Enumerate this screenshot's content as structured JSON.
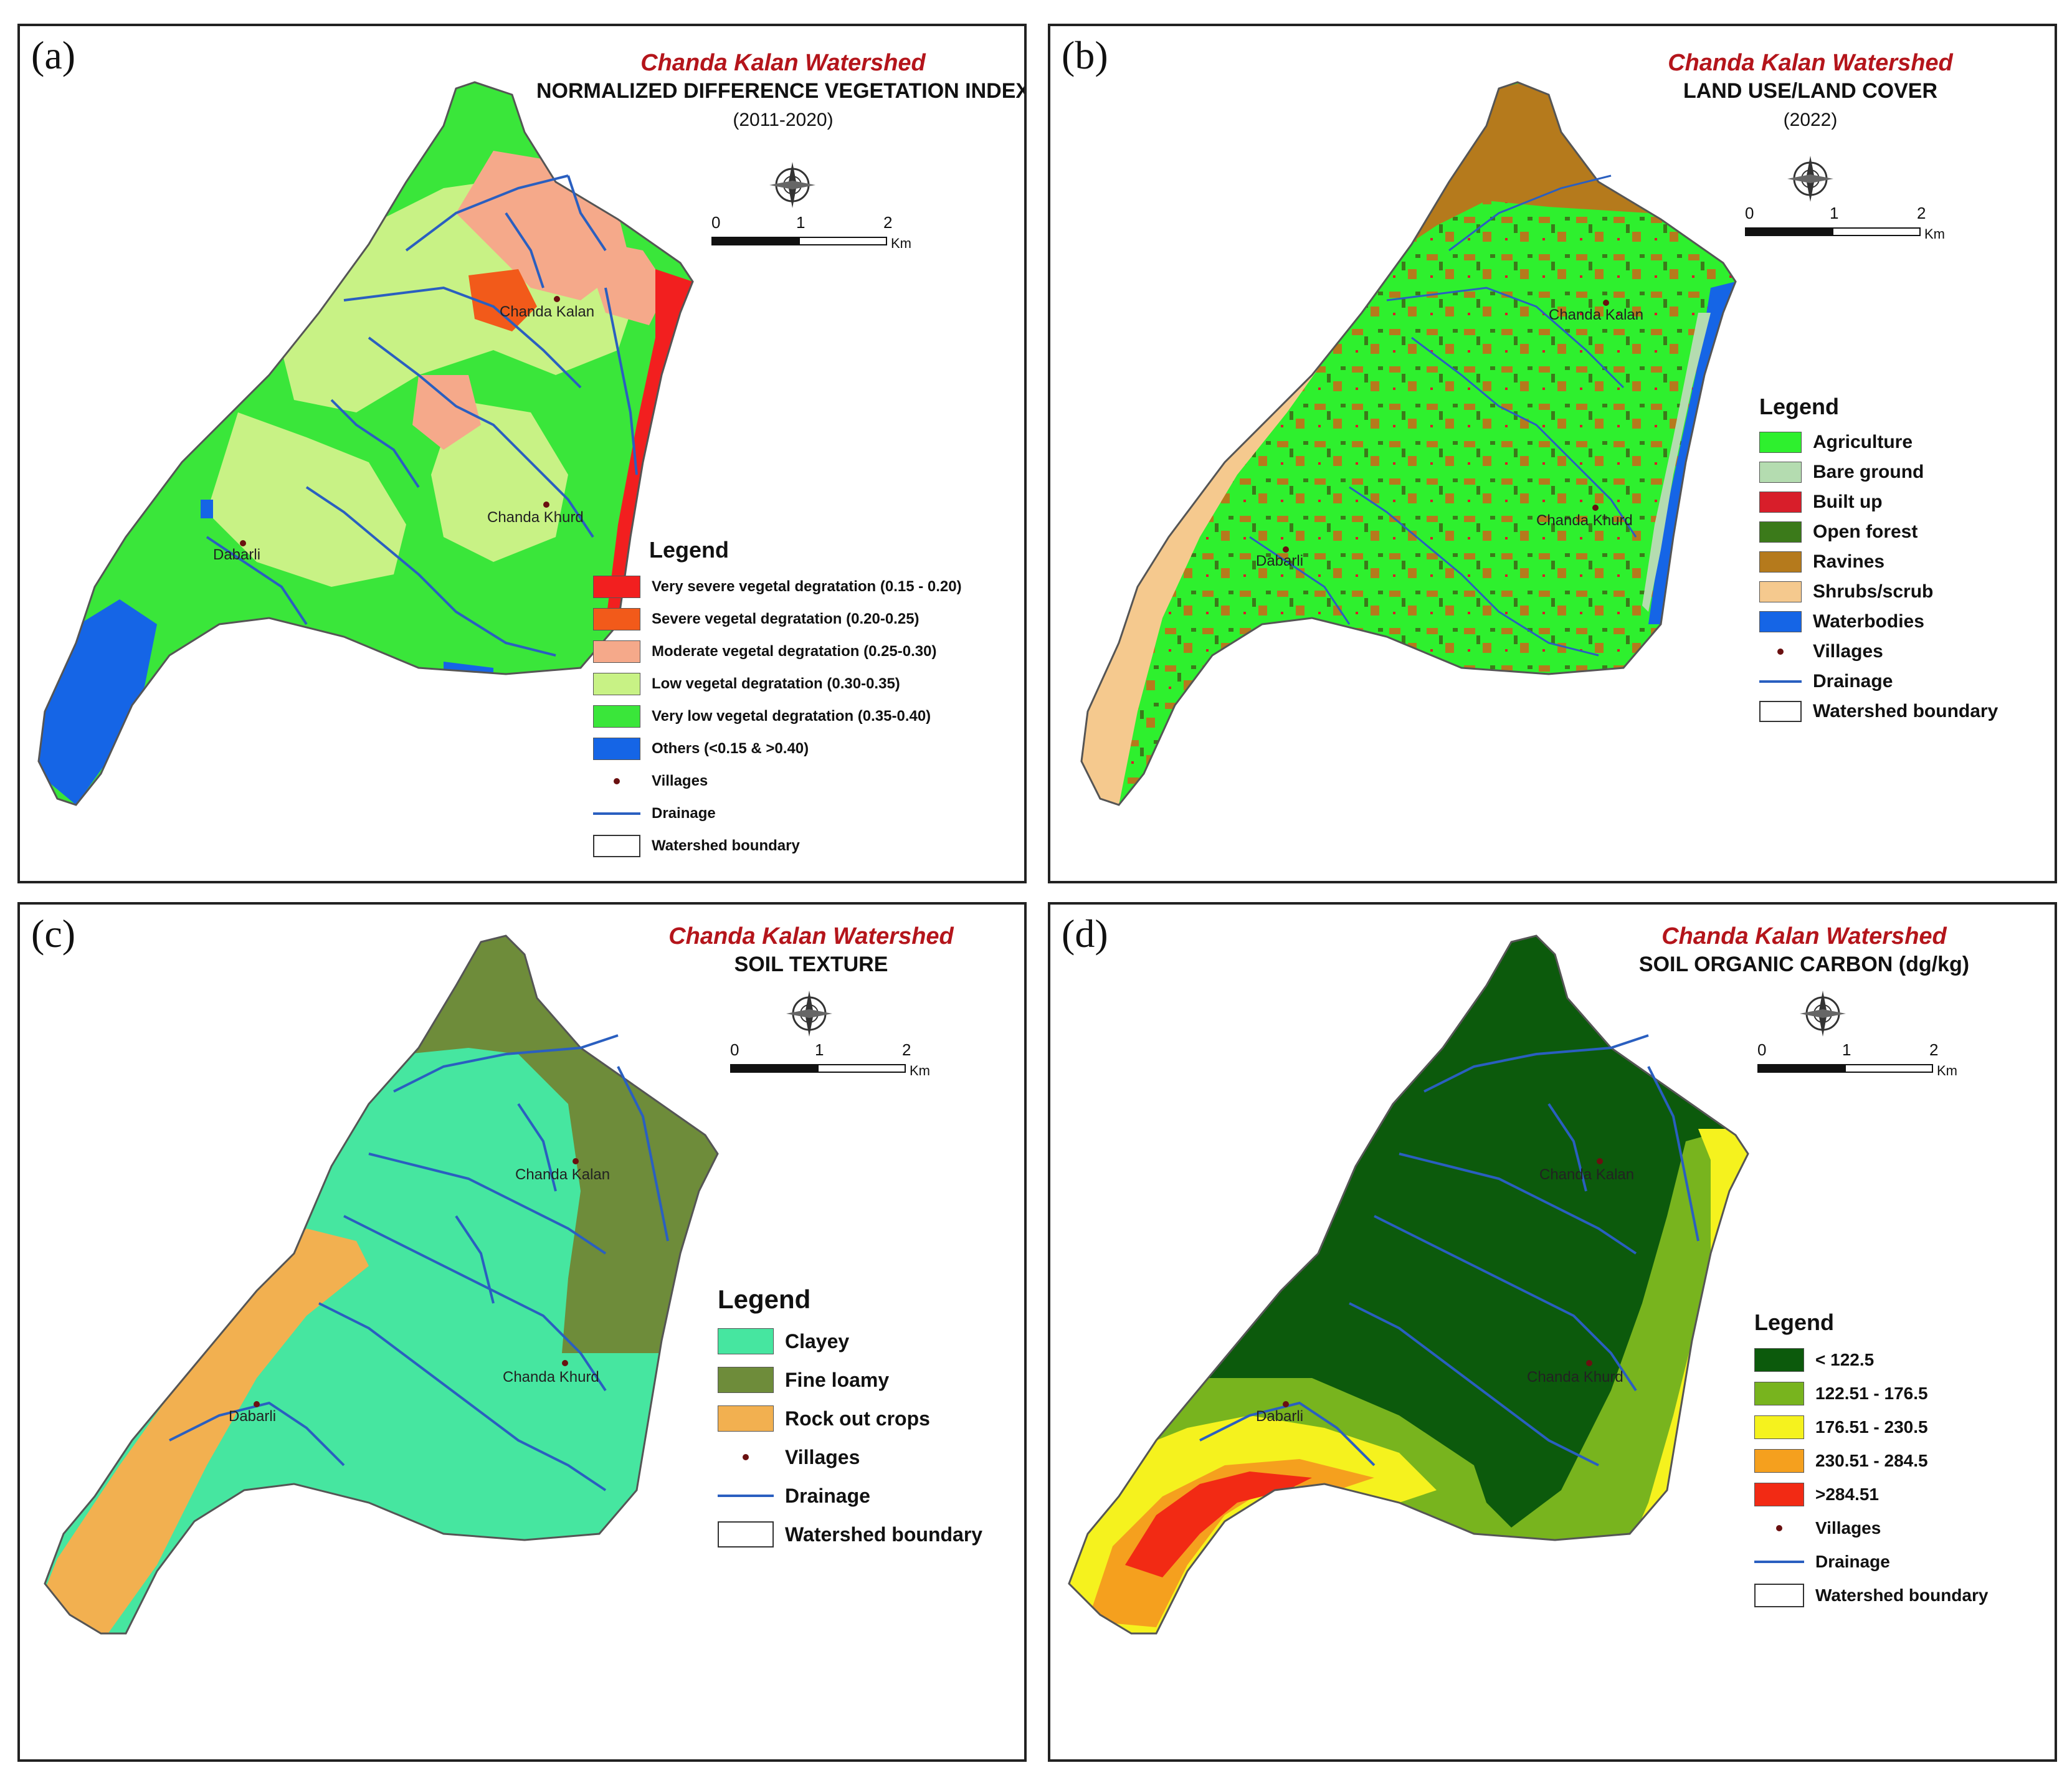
{
  "panels": {
    "a": {
      "label": "(a)",
      "watershed": "Chanda Kalan Watershed",
      "title": "NORMALIZED DIFFERENCE VEGETATION INDEX",
      "subtitle": "(2011-2020)",
      "legend_title": "Legend",
      "legend": [
        {
          "label": "Very severe vegetal degratation (0.15 - 0.20)",
          "color": "#f21f1f"
        },
        {
          "label": "Severe vegetal degratation (0.20-0.25)",
          "color": "#f25a1a"
        },
        {
          "label": "Moderate vegetal degratation (0.25-0.30)",
          "color": "#f5a98a"
        },
        {
          "label": "Low vegetal degratation (0.30-0.35)",
          "color": "#c8f285"
        },
        {
          "label": "Very low vegetal degratation (0.35-0.40)",
          "color": "#3ae63a"
        },
        {
          "label": "Others (<0.15 & >0.40)",
          "color": "#1565e6"
        }
      ],
      "symbols": {
        "villages": "Villages",
        "drainage": "Drainage",
        "boundary": "Watershed boundary"
      },
      "villages": [
        "Chanda Kalan",
        "Chanda Khurd",
        "Dabarli"
      ]
    },
    "b": {
      "label": "(b)",
      "watershed": "Chanda Kalan Watershed",
      "title": "LAND USE/LAND COVER",
      "subtitle": "(2022)",
      "legend_title": "Legend",
      "legend": [
        {
          "label": "Agriculture",
          "color": "#2ef02e"
        },
        {
          "label": "Bare ground",
          "color": "#b4dcb0"
        },
        {
          "label": "Built up",
          "color": "#d81e2a"
        },
        {
          "label": "Open forest",
          "color": "#3b7a1a"
        },
        {
          "label": "Ravines",
          "color": "#b57a1c"
        },
        {
          "label": "Shrubs/scrub",
          "color": "#f5c98e"
        },
        {
          "label": "Waterbodies",
          "color": "#1565e6"
        }
      ],
      "symbols": {
        "villages": "Villages",
        "drainage": "Drainage",
        "boundary": "Watershed boundary"
      },
      "villages": [
        "Chanda Kalan",
        "Chanda Khurd",
        "Dabarli"
      ]
    },
    "c": {
      "label": "(c)",
      "watershed": "Chanda Kalan Watershed",
      "title": "SOIL TEXTURE",
      "legend_title": "Legend",
      "legend": [
        {
          "label": "Clayey",
          "color": "#46e6a0"
        },
        {
          "label": "Fine loamy",
          "color": "#6e8c3a"
        },
        {
          "label": "Rock out crops",
          "color": "#f2b050"
        }
      ],
      "symbols": {
        "villages": "Villages",
        "drainage": "Drainage",
        "boundary": "Watershed boundary"
      },
      "villages": [
        "Chanda Kalan",
        "Chanda Khurd",
        "Dabarli"
      ]
    },
    "d": {
      "label": "(d)",
      "watershed": "Chanda Kalan Watershed",
      "title": "SOIL ORGANIC CARBON (dg/kg)",
      "legend_title": "Legend",
      "legend": [
        {
          "label": "< 122.5",
          "color": "#0c5a0c"
        },
        {
          "label": "122.51 - 176.5",
          "color": "#78b41e"
        },
        {
          "label": "176.51 - 230.5",
          "color": "#f5f21e"
        },
        {
          "label": "230.51 - 284.5",
          "color": "#f5a01e"
        },
        {
          "label": ">284.51",
          "color": "#f22a14"
        }
      ],
      "symbols": {
        "villages": "Villages",
        "drainage": "Drainage",
        "boundary": "Watershed boundary"
      },
      "villages": [
        "Chanda Kalan",
        "Chanda Khurd",
        "Dabarli"
      ]
    }
  },
  "scale_bar": {
    "ticks": [
      "0",
      "1",
      "2"
    ],
    "unit": "Km"
  },
  "colors": {
    "drainage": "#2a5fc0",
    "village_dot": "#6a1010",
    "watershed_red": "#b4151b"
  }
}
